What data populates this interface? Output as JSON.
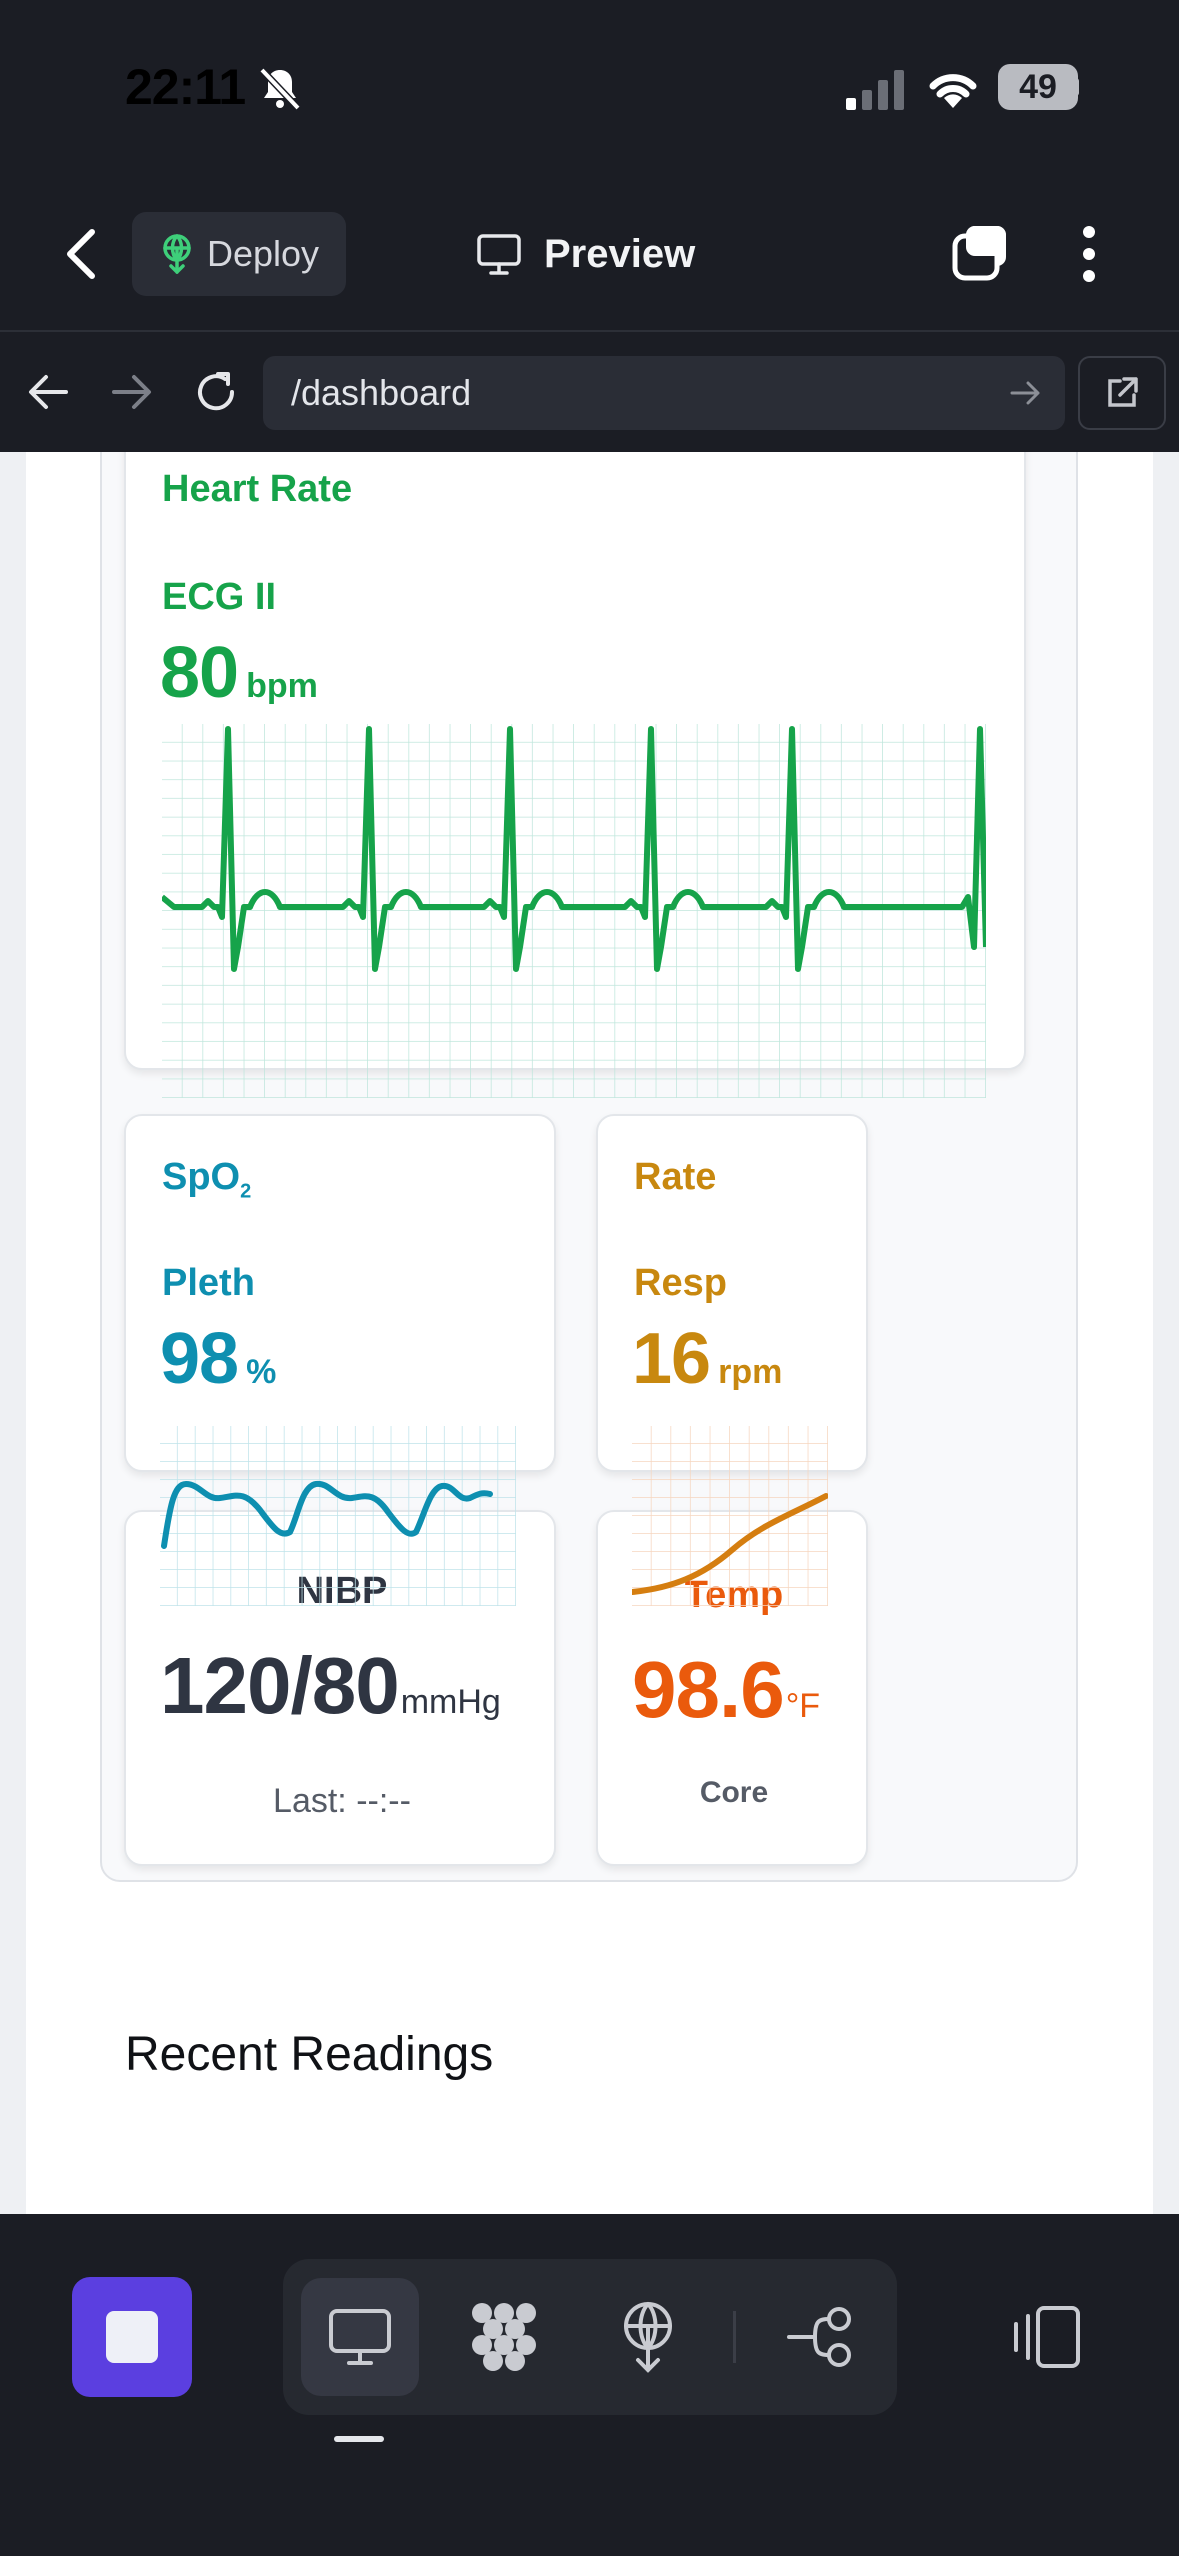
{
  "status_bar": {
    "time": "22:11",
    "battery": "49"
  },
  "header": {
    "deploy_label": "Deploy",
    "preview_label": "Preview"
  },
  "url_bar": {
    "path": "/dashboard"
  },
  "heart": {
    "section_label": "Heart Rate",
    "lead_label": "ECG II",
    "value": "80",
    "unit": "bpm",
    "color": "#16a34a"
  },
  "spo2": {
    "label_main": "SpO",
    "label_sub": "2",
    "wave_label": "Pleth",
    "value": "98",
    "unit": "%",
    "color": "#0e8fb0"
  },
  "resp": {
    "label": "Rate",
    "wave_label": "Resp",
    "value": "16",
    "unit": "rpm",
    "color": "#c8880f"
  },
  "nibp": {
    "label": "NIBP",
    "value": "120/80",
    "unit": "mmHg",
    "last": "Last: --:--"
  },
  "temp": {
    "label": "Temp",
    "value": "98.6",
    "unit": "°F",
    "site": "Core",
    "color": "#ea5a0c"
  },
  "recent": {
    "title": "Recent Readings"
  },
  "icons": [
    "back-icon",
    "deploy-icon",
    "monitor-icon",
    "tabs-icon",
    "more-icon",
    "nav-back-icon",
    "nav-forward-icon",
    "reload-icon",
    "go-icon",
    "external-link-icon",
    "stop-icon",
    "desktop-icon",
    "grid-icon",
    "deploy-tool-icon",
    "flow-icon",
    "panel-toggle-icon"
  ]
}
